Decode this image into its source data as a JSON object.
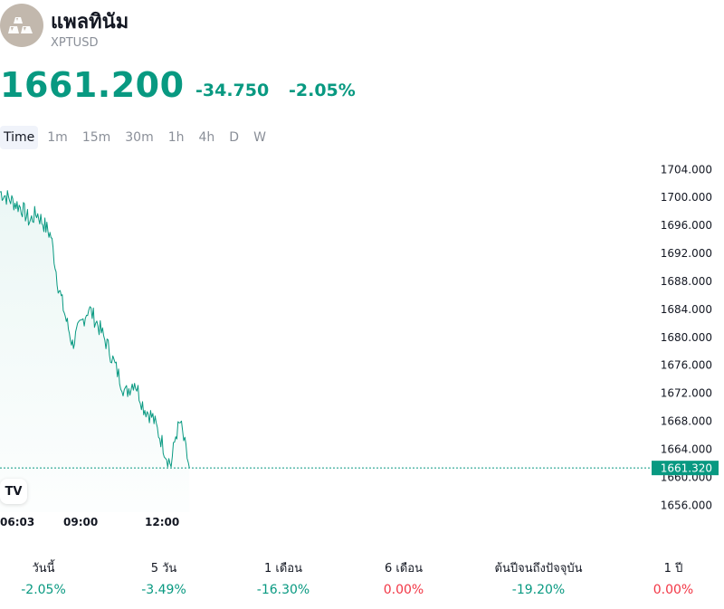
{
  "header": {
    "title": "แพลทินัม",
    "symbol": "XPTUSD",
    "icon": "platinum-bars-icon"
  },
  "quote": {
    "price": "1661.200",
    "change": "-34.750",
    "change_percent": "-2.05%"
  },
  "tabs": [
    {
      "label": "Time",
      "active": true
    },
    {
      "label": "1m",
      "active": false
    },
    {
      "label": "15m",
      "active": false
    },
    {
      "label": "30m",
      "active": false
    },
    {
      "label": "1h",
      "active": false
    },
    {
      "label": "4h",
      "active": false
    },
    {
      "label": "D",
      "active": false
    },
    {
      "label": "W",
      "active": false
    }
  ],
  "colors": {
    "line": "#089981",
    "positive": "#089981",
    "negative": "#f23645"
  },
  "chart_data": {
    "type": "area",
    "y_ticks": [
      "1704.000",
      "1700.000",
      "1696.000",
      "1692.000",
      "1688.000",
      "1684.000",
      "1680.000",
      "1676.000",
      "1672.000",
      "1668.000",
      "1664.000",
      "1660.000",
      "1656.000"
    ],
    "ylim": [
      1655,
      1706.5
    ],
    "x_ticks": [
      "06:03",
      "09:00",
      "12:00"
    ],
    "current_value_label": "1661.320",
    "current_value": 1661.32,
    "x": [
      "06:03",
      "06:20",
      "06:40",
      "07:00",
      "07:20",
      "07:40",
      "08:00",
      "08:20",
      "08:40",
      "09:00",
      "09:20",
      "09:40",
      "10:00",
      "10:20",
      "10:40",
      "11:00",
      "11:20",
      "11:40",
      "12:00",
      "12:10",
      "12:20",
      "12:30",
      "12:40",
      "12:50",
      "13:00"
    ],
    "values": [
      1700.8,
      1698.4,
      1696.6,
      1697.8,
      1696.2,
      1694.5,
      1687.5,
      1683.0,
      1679.0,
      1681.5,
      1684.2,
      1681.8,
      1679.0,
      1675.5,
      1672.0,
      1673.8,
      1670.0,
      1668.5,
      1665.0,
      1663.0,
      1661.8,
      1666.0,
      1667.8,
      1664.5,
      1661.3
    ],
    "grid": false,
    "legend": "none"
  },
  "tv_logo": "TV",
  "performance": [
    {
      "label": "วันนี้",
      "value": "-2.05%",
      "sign": "pos"
    },
    {
      "label": "5 วัน",
      "value": "-3.49%",
      "sign": "pos"
    },
    {
      "label": "1 เดือน",
      "value": "-16.30%",
      "sign": "pos"
    },
    {
      "label": "6 เดือน",
      "value": "0.00%",
      "sign": "neg"
    },
    {
      "label": "ต้นปีจนถึงปัจจุบัน",
      "value": "-19.20%",
      "sign": "pos"
    },
    {
      "label": "1 ปี",
      "value": "0.00%",
      "sign": "neg"
    }
  ]
}
